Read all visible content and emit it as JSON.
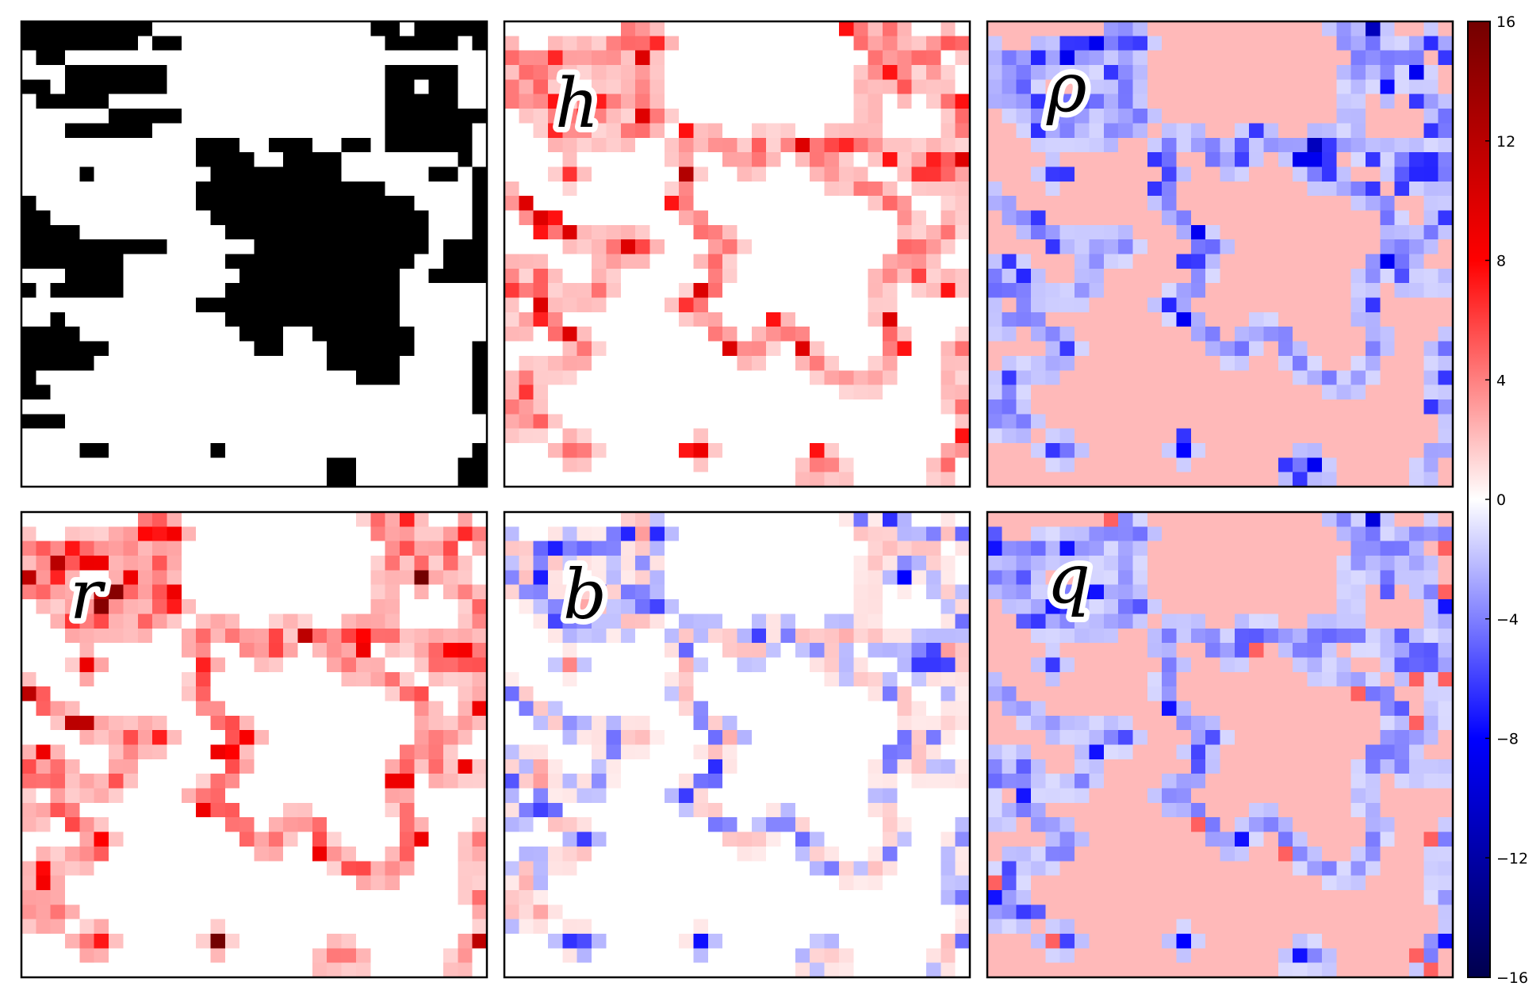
{
  "chart_data": {
    "type": "heatmap",
    "grid_size": [
      32,
      32
    ],
    "panels": [
      {
        "id": "spin",
        "label": "",
        "colormap": "binary",
        "vlim": [
          0,
          1
        ],
        "description_values": "lattice configuration, black/white cells"
      },
      {
        "id": "h",
        "label": "h",
        "colormap": "seismic",
        "vlim": [
          -16,
          16
        ]
      },
      {
        "id": "rho",
        "label": "ρ",
        "colormap": "seismic",
        "vlim": [
          -16,
          16
        ]
      },
      {
        "id": "r",
        "label": "r",
        "colormap": "seismic",
        "vlim": [
          -16,
          16
        ]
      },
      {
        "id": "b",
        "label": "b",
        "colormap": "seismic",
        "vlim": [
          -16,
          16
        ]
      },
      {
        "id": "q",
        "label": "q",
        "colormap": "seismic",
        "vlim": [
          -16,
          16
        ]
      }
    ],
    "colorbar": {
      "ticks": [
        16,
        12,
        8,
        4,
        0,
        -4,
        -8,
        -12,
        -16
      ],
      "tick_labels": [
        "16",
        "12",
        "8",
        "4",
        "0",
        "−4",
        "−8",
        "−12",
        "−16"
      ],
      "range": [
        -16,
        16
      ],
      "colormap": "seismic"
    },
    "spin_rows": [
      "11111111100000000000000011011111",
      "11111111011000000000000001111101",
      "01100000000000000000000000000000",
      "00011111110000000000000001111100",
      "11011111110000000000000001101100",
      "01111100000000000000000001111100",
      "00000011111000000000000001111111",
      "00011111100000000000000001111110",
      "00000000000011100111001101111110",
      "00000000000011110011110000000010",
      "00001000000001111111110000001101",
      "00000000000011111111111110000001",
      "10000000000011111111111111100001",
      "11000000000001111111111111110001",
      "11110000000000111111111111110001",
      "11111111110000001111111111110111",
      "11111110000000111111111111100111",
      "00011110000000011111111111001111",
      "10111110000000111111111111000000",
      "00000000000011111111111111000000",
      "00100000000000111111111111000000",
      "11110000000000011100111111100000",
      "11111100000000001100011111100001",
      "11111000000000000000011111000001",
      "10000000000000000000000111000001",
      "11000000000000000000000000000001",
      "00000000000000000000000000000001",
      "11100000000000000000000000000000",
      "00000000000000000000000000000000",
      "00001100000001000000000000000001",
      "00000000000000000000011000000011",
      "00000000000000000000011000000011"
    ]
  }
}
